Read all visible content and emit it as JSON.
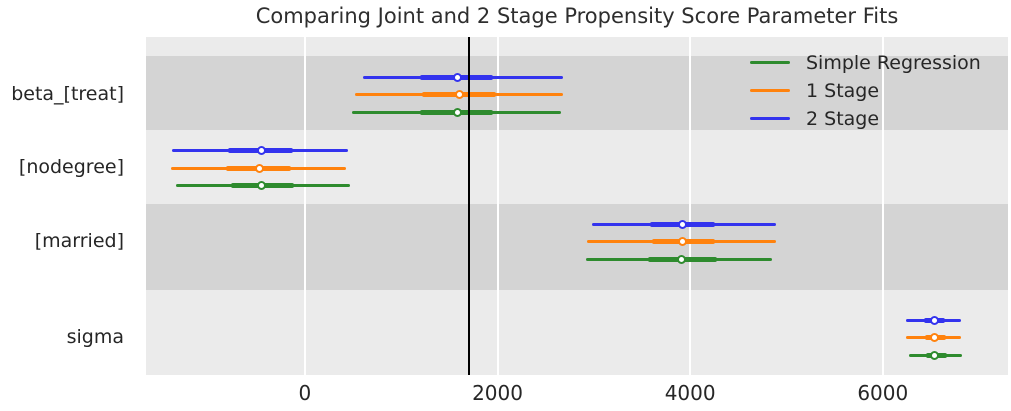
{
  "title": "Comparing Joint and 2 Stage Propensity Score Parameter Fits",
  "colors": {
    "blue": "#3333ee",
    "orange": "#ff820d",
    "green": "#2e8b2e",
    "plot_background": "#ebebeb",
    "band": "#d4d4d4",
    "grid": "#ffffff",
    "reference_line": "#000000",
    "text": "#262626"
  },
  "chart_data": {
    "type": "forest",
    "title": "Comparing Joint and 2 Stage Propensity Score Parameter Fits",
    "xlabel": "",
    "ylabel": "",
    "xlim": [
      -1650,
      7300
    ],
    "x_ticks": [
      0,
      2000,
      4000,
      6000
    ],
    "x_tick_labels": [
      "0",
      "2000",
      "4000",
      "6000"
    ],
    "grid": true,
    "reference_line_x": 1700,
    "parameters": [
      "beta_[treat]",
      "[nodegree]",
      "[married]",
      "sigma"
    ],
    "legend_position": "upper-right",
    "legend": [
      {
        "label": "Simple Regression",
        "color": "#2e8b2e"
      },
      {
        "label": "1 Stage",
        "color": "#ff820d"
      },
      {
        "label": "2 Stage",
        "color": "#3333ee"
      }
    ],
    "series": [
      {
        "name": "2 Stage",
        "color": "#3333ee",
        "estimates": [
          {
            "param": "beta_[treat]",
            "point": 1580,
            "inner": [
              1195,
              1955
            ],
            "outer": [
              600,
              2680
            ]
          },
          {
            "param": "[nodegree]",
            "point": -455,
            "inner": [
              -795,
              -120
            ],
            "outer": [
              -1375,
              450
            ]
          },
          {
            "param": "[married]",
            "point": 3925,
            "inner": [
              3585,
              4260
            ],
            "outer": [
              2980,
              4895
            ]
          },
          {
            "param": "sigma",
            "point": 6535,
            "inner": [
              6430,
              6650
            ],
            "outer": [
              6245,
              6815
            ]
          }
        ]
      },
      {
        "name": "1 Stage",
        "color": "#ff820d",
        "estimates": [
          {
            "param": "beta_[treat]",
            "point": 1600,
            "inner": [
              1215,
              1985
            ],
            "outer": [
              520,
              2680
            ]
          },
          {
            "param": "[nodegree]",
            "point": -475,
            "inner": [
              -815,
              -145
            ],
            "outer": [
              -1395,
              425
            ]
          },
          {
            "param": "[married]",
            "point": 3925,
            "inner": [
              3605,
              4260
            ],
            "outer": [
              2930,
              4895
            ]
          },
          {
            "param": "sigma",
            "point": 6535,
            "inner": [
              6440,
              6660
            ],
            "outer": [
              6245,
              6815
            ]
          }
        ]
      },
      {
        "name": "Simple Regression",
        "color": "#2e8b2e",
        "estimates": [
          {
            "param": "beta_[treat]",
            "point": 1580,
            "inner": [
              1195,
              1955
            ],
            "outer": [
              490,
              2660
            ]
          },
          {
            "param": "[nodegree]",
            "point": -455,
            "inner": [
              -770,
              -115
            ],
            "outer": [
              -1340,
              465
            ]
          },
          {
            "param": "[married]",
            "point": 3915,
            "inner": [
              3565,
              4280
            ],
            "outer": [
              2920,
              4850
            ]
          },
          {
            "param": "sigma",
            "point": 6535,
            "inner": [
              6450,
              6670
            ],
            "outer": [
              6275,
              6825
            ]
          }
        ]
      }
    ]
  }
}
